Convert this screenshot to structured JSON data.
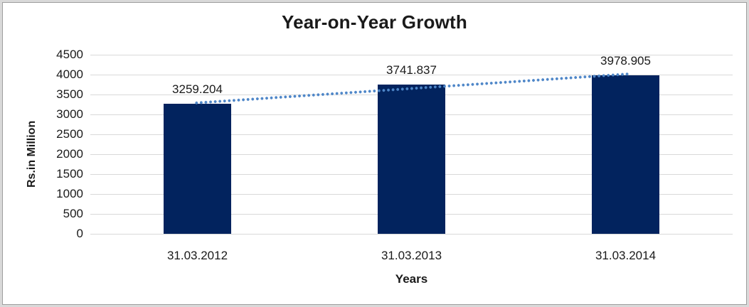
{
  "window": {
    "frame_band_color": "#d9d9d9",
    "frame_line_color": "#9e9e9e",
    "canvas_color": "#ffffff"
  },
  "chart_data": {
    "type": "bar",
    "title": "Year-on-Year Growth",
    "categories": [
      "31.03.2012",
      "31.03.2013",
      "31.03.2014"
    ],
    "values": [
      3259.204,
      3741.837,
      3978.905
    ],
    "data_labels": [
      "3259.204",
      "3741.837",
      "3978.905"
    ],
    "xlabel": "Years",
    "ylabel": "Rs.in Million",
    "ylim": [
      0,
      4500
    ],
    "yticks": [
      0,
      500,
      1000,
      1500,
      2000,
      2500,
      3000,
      3500,
      4000,
      4500
    ],
    "grid": "horizontal",
    "legend": "none",
    "bar_color": "#02235e",
    "gridline_color": "#d9d9d9",
    "text_color": "#1a1a1a",
    "trendline": {
      "type": "linear",
      "style": "dotted",
      "color": "#4e86c8"
    }
  }
}
